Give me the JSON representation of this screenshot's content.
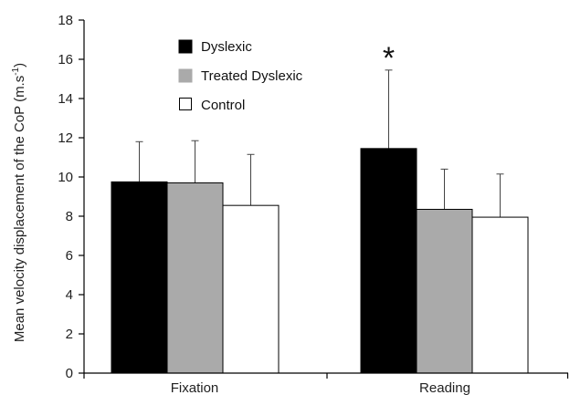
{
  "chart_data": {
    "type": "bar",
    "categories": [
      "Fixation",
      "Reading"
    ],
    "series": [
      {
        "name": "Dyslexic",
        "values": [
          9.75,
          11.45
        ],
        "errors": [
          2.05,
          4.0
        ],
        "color": "#000000"
      },
      {
        "name": "Treated Dyslexic",
        "values": [
          9.7,
          8.35
        ],
        "errors": [
          2.15,
          2.05
        ],
        "color": "#aaaaaa"
      },
      {
        "name": "Control",
        "values": [
          8.55,
          7.95
        ],
        "errors": [
          2.6,
          2.2
        ],
        "color": "#ffffff"
      }
    ],
    "ylabel": "Mean velocity displacement of the CoP (m.s-1)",
    "ylabel_main": "Mean velocity displacement of the CoP (m.s",
    "ylabel_sup": "-1",
    "ylabel_close": ")",
    "ylim": [
      0,
      18
    ],
    "yticks": [
      0,
      2,
      4,
      6,
      8,
      10,
      12,
      14,
      16,
      18
    ],
    "ytick_labels": [
      "0",
      "2",
      "4",
      "6",
      "8",
      "10",
      "12",
      "14",
      "16",
      "18"
    ],
    "legend_position": "top-left",
    "grid": false,
    "annotations": [
      {
        "text": "*",
        "category": "Reading",
        "series": "Dyslexic"
      }
    ]
  }
}
